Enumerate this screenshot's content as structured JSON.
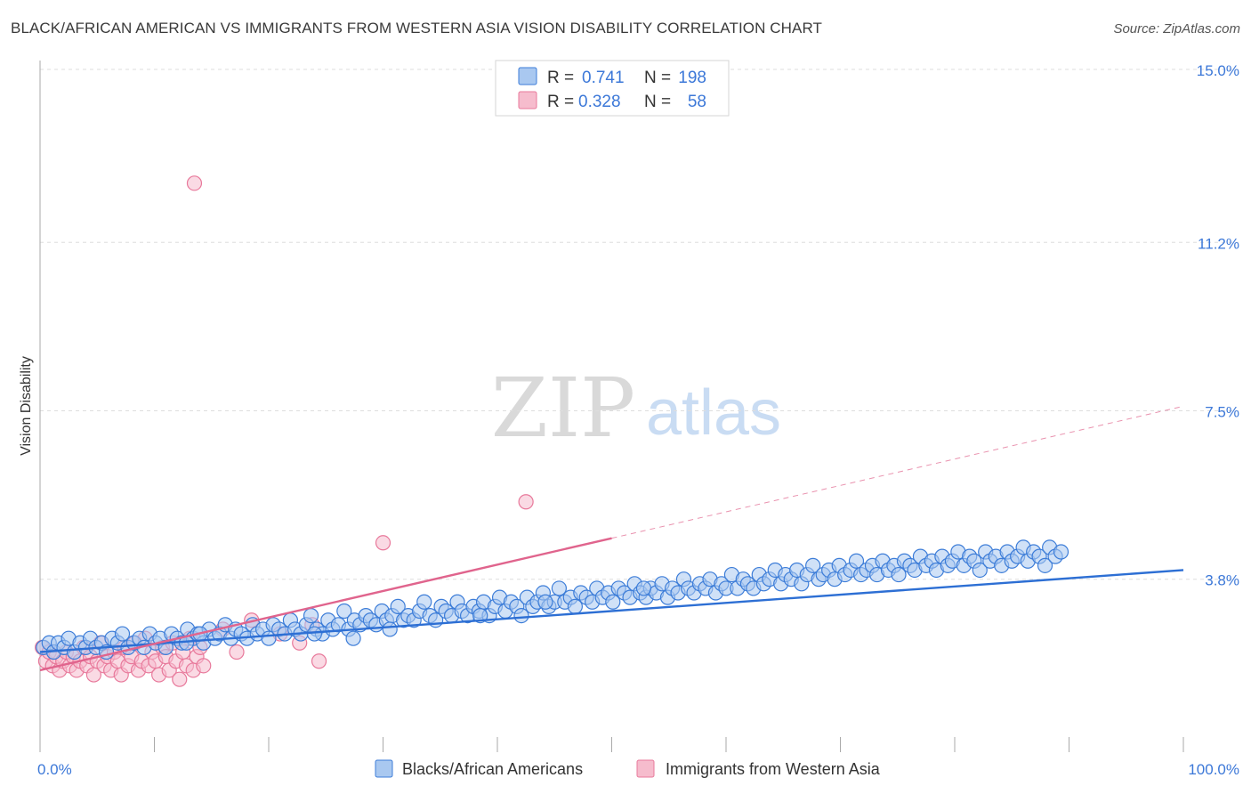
{
  "title": "BLACK/AFRICAN AMERICAN VS IMMIGRANTS FROM WESTERN ASIA VISION DISABILITY CORRELATION CHART",
  "source": "Source: ZipAtlas.com",
  "watermark": {
    "zip": "ZIP",
    "atlas": "atlas"
  },
  "colors": {
    "blue_fill": "#a9c8f0",
    "blue_stroke": "#3d7dd8",
    "blue_line": "#2d6fd4",
    "pink_fill": "#f6bccd",
    "pink_stroke": "#e8799b",
    "pink_line": "#e0648d",
    "tick_label": "#3c78d8",
    "grid": "#dddddd"
  },
  "legend_top": {
    "rows": [
      {
        "r_label": "R =",
        "r_value": "0.741",
        "n_label": "N =",
        "n_value": "198",
        "color": "blue"
      },
      {
        "r_label": "R =",
        "r_value": "0.328",
        "n_label": "N =",
        "n_value": "58",
        "color": "pink"
      }
    ]
  },
  "legend_bottom": [
    {
      "label": "Blacks/African Americans",
      "color": "blue"
    },
    {
      "label": "Immigrants from Western Asia",
      "color": "pink"
    }
  ],
  "chart_data": {
    "type": "scatter",
    "xlabel": "",
    "ylabel": "Vision Disability",
    "xlim": [
      0,
      100
    ],
    "ylim": [
      0,
      15.0
    ],
    "x_tick_labels": [
      {
        "value": 0,
        "label": "0.0%"
      },
      {
        "value": 100,
        "label": "100.0%"
      }
    ],
    "y_tick_labels": [
      {
        "value": 3.8,
        "label": "3.8%"
      },
      {
        "value": 7.5,
        "label": "7.5%"
      },
      {
        "value": 11.2,
        "label": "11.2%"
      },
      {
        "value": 15.0,
        "label": "15.0%"
      }
    ],
    "grid": true,
    "legend_position": "bottom",
    "series": [
      {
        "name": "Blacks/African Americans",
        "color": "blue",
        "trendline": {
          "x": [
            0,
            100
          ],
          "y": [
            2.2,
            4.0
          ]
        },
        "points": [
          [
            0.3,
            2.3
          ],
          [
            0.8,
            2.4
          ],
          [
            1.2,
            2.2
          ],
          [
            1.6,
            2.4
          ],
          [
            2.1,
            2.3
          ],
          [
            2.5,
            2.5
          ],
          [
            3.0,
            2.2
          ],
          [
            3.5,
            2.4
          ],
          [
            4.0,
            2.3
          ],
          [
            4.4,
            2.5
          ],
          [
            4.9,
            2.3
          ],
          [
            5.4,
            2.4
          ],
          [
            5.8,
            2.2
          ],
          [
            6.3,
            2.5
          ],
          [
            6.8,
            2.4
          ],
          [
            7.2,
            2.6
          ],
          [
            7.7,
            2.3
          ],
          [
            8.2,
            2.4
          ],
          [
            8.7,
            2.5
          ],
          [
            9.1,
            2.3
          ],
          [
            9.6,
            2.6
          ],
          [
            10.1,
            2.4
          ],
          [
            10.5,
            2.5
          ],
          [
            11.0,
            2.3
          ],
          [
            11.5,
            2.6
          ],
          [
            12.0,
            2.5
          ],
          [
            12.4,
            2.4
          ],
          [
            12.9,
            2.7
          ],
          [
            13.4,
            2.5
          ],
          [
            13.8,
            2.6
          ],
          [
            14.3,
            2.4
          ],
          [
            14.8,
            2.7
          ],
          [
            15.3,
            2.5
          ],
          [
            15.7,
            2.6
          ],
          [
            16.2,
            2.8
          ],
          [
            16.7,
            2.5
          ],
          [
            17.1,
            2.7
          ],
          [
            17.6,
            2.6
          ],
          [
            18.1,
            2.5
          ],
          [
            18.6,
            2.8
          ],
          [
            19.0,
            2.6
          ],
          [
            19.5,
            2.7
          ],
          [
            20.0,
            2.5
          ],
          [
            20.4,
            2.8
          ],
          [
            20.9,
            2.7
          ],
          [
            21.4,
            2.6
          ],
          [
            21.9,
            2.9
          ],
          [
            22.3,
            2.7
          ],
          [
            22.8,
            2.6
          ],
          [
            23.3,
            2.8
          ],
          [
            23.7,
            3.0
          ],
          [
            24.2,
            2.7
          ],
          [
            24.7,
            2.6
          ],
          [
            25.2,
            2.9
          ],
          [
            25.6,
            2.7
          ],
          [
            26.1,
            2.8
          ],
          [
            26.6,
            3.1
          ],
          [
            27.0,
            2.7
          ],
          [
            27.5,
            2.9
          ],
          [
            28.0,
            2.8
          ],
          [
            28.5,
            3.0
          ],
          [
            28.9,
            2.9
          ],
          [
            29.4,
            2.8
          ],
          [
            29.9,
            3.1
          ],
          [
            30.3,
            2.9
          ],
          [
            30.8,
            3.0
          ],
          [
            31.3,
            3.2
          ],
          [
            31.8,
            2.9
          ],
          [
            32.2,
            3.0
          ],
          [
            32.7,
            2.9
          ],
          [
            33.2,
            3.1
          ],
          [
            33.6,
            3.3
          ],
          [
            34.1,
            3.0
          ],
          [
            34.6,
            2.9
          ],
          [
            35.1,
            3.2
          ],
          [
            35.5,
            3.1
          ],
          [
            36.0,
            3.0
          ],
          [
            36.5,
            3.3
          ],
          [
            36.9,
            3.1
          ],
          [
            37.4,
            3.0
          ],
          [
            37.9,
            3.2
          ],
          [
            38.4,
            3.1
          ],
          [
            38.8,
            3.3
          ],
          [
            39.3,
            3.0
          ],
          [
            39.8,
            3.2
          ],
          [
            40.2,
            3.4
          ],
          [
            40.7,
            3.1
          ],
          [
            41.2,
            3.3
          ],
          [
            41.7,
            3.2
          ],
          [
            42.1,
            3.0
          ],
          [
            42.6,
            3.4
          ],
          [
            43.1,
            3.2
          ],
          [
            43.5,
            3.3
          ],
          [
            44.0,
            3.5
          ],
          [
            44.5,
            3.2
          ],
          [
            45.0,
            3.3
          ],
          [
            45.4,
            3.6
          ],
          [
            45.9,
            3.3
          ],
          [
            46.4,
            3.4
          ],
          [
            46.8,
            3.2
          ],
          [
            47.3,
            3.5
          ],
          [
            47.8,
            3.4
          ],
          [
            48.3,
            3.3
          ],
          [
            48.7,
            3.6
          ],
          [
            49.2,
            3.4
          ],
          [
            49.7,
            3.5
          ],
          [
            50.1,
            3.3
          ],
          [
            50.6,
            3.6
          ],
          [
            51.1,
            3.5
          ],
          [
            51.6,
            3.4
          ],
          [
            52.0,
            3.7
          ],
          [
            52.5,
            3.5
          ],
          [
            53.0,
            3.4
          ],
          [
            53.4,
            3.6
          ],
          [
            53.9,
            3.5
          ],
          [
            54.4,
            3.7
          ],
          [
            54.9,
            3.4
          ],
          [
            55.3,
            3.6
          ],
          [
            55.8,
            3.5
          ],
          [
            56.3,
            3.8
          ],
          [
            56.7,
            3.6
          ],
          [
            57.2,
            3.5
          ],
          [
            57.7,
            3.7
          ],
          [
            58.2,
            3.6
          ],
          [
            58.6,
            3.8
          ],
          [
            59.1,
            3.5
          ],
          [
            59.6,
            3.7
          ],
          [
            60.0,
            3.6
          ],
          [
            60.5,
            3.9
          ],
          [
            61.0,
            3.6
          ],
          [
            61.5,
            3.8
          ],
          [
            61.9,
            3.7
          ],
          [
            62.4,
            3.6
          ],
          [
            62.9,
            3.9
          ],
          [
            63.3,
            3.7
          ],
          [
            63.8,
            3.8
          ],
          [
            64.3,
            4.0
          ],
          [
            64.8,
            3.7
          ],
          [
            65.2,
            3.9
          ],
          [
            65.7,
            3.8
          ],
          [
            66.2,
            4.0
          ],
          [
            66.6,
            3.7
          ],
          [
            67.1,
            3.9
          ],
          [
            67.6,
            4.1
          ],
          [
            68.1,
            3.8
          ],
          [
            68.5,
            3.9
          ],
          [
            69.0,
            4.0
          ],
          [
            69.5,
            3.8
          ],
          [
            69.9,
            4.1
          ],
          [
            70.4,
            3.9
          ],
          [
            70.9,
            4.0
          ],
          [
            71.4,
            4.2
          ],
          [
            71.8,
            3.9
          ],
          [
            72.3,
            4.0
          ],
          [
            72.8,
            4.1
          ],
          [
            73.2,
            3.9
          ],
          [
            73.7,
            4.2
          ],
          [
            74.2,
            4.0
          ],
          [
            74.7,
            4.1
          ],
          [
            75.1,
            3.9
          ],
          [
            75.6,
            4.2
          ],
          [
            76.1,
            4.1
          ],
          [
            76.5,
            4.0
          ],
          [
            77.0,
            4.3
          ],
          [
            77.5,
            4.1
          ],
          [
            78.0,
            4.2
          ],
          [
            78.4,
            4.0
          ],
          [
            78.9,
            4.3
          ],
          [
            79.4,
            4.1
          ],
          [
            79.8,
            4.2
          ],
          [
            80.3,
            4.4
          ],
          [
            80.8,
            4.1
          ],
          [
            81.3,
            4.3
          ],
          [
            81.7,
            4.2
          ],
          [
            82.2,
            4.0
          ],
          [
            82.7,
            4.4
          ],
          [
            83.1,
            4.2
          ],
          [
            83.6,
            4.3
          ],
          [
            84.1,
            4.1
          ],
          [
            84.6,
            4.4
          ],
          [
            85.0,
            4.2
          ],
          [
            85.5,
            4.3
          ],
          [
            86.0,
            4.5
          ],
          [
            86.4,
            4.2
          ],
          [
            86.9,
            4.4
          ],
          [
            87.4,
            4.3
          ],
          [
            87.9,
            4.1
          ],
          [
            88.3,
            4.5
          ],
          [
            88.8,
            4.3
          ],
          [
            89.3,
            4.4
          ],
          [
            12.8,
            2.4
          ],
          [
            14.0,
            2.6
          ],
          [
            24.0,
            2.6
          ],
          [
            27.4,
            2.5
          ],
          [
            30.6,
            2.7
          ],
          [
            38.5,
            3.0
          ],
          [
            44.2,
            3.3
          ],
          [
            52.8,
            3.6
          ]
        ]
      },
      {
        "name": "Immigrants from Western Asia",
        "color": "pink",
        "trendline": {
          "x": [
            0,
            50
          ],
          "y": [
            1.8,
            4.7
          ]
        },
        "trendline_dashed_extension": {
          "x": [
            50,
            100
          ],
          "y": [
            4.7,
            7.6
          ]
        },
        "points": [
          [
            0.2,
            2.3
          ],
          [
            0.5,
            2.0
          ],
          [
            0.8,
            2.2
          ],
          [
            1.1,
            1.9
          ],
          [
            1.4,
            2.1
          ],
          [
            1.7,
            1.8
          ],
          [
            2.0,
            2.0
          ],
          [
            2.3,
            2.2
          ],
          [
            2.6,
            1.9
          ],
          [
            2.9,
            2.1
          ],
          [
            3.2,
            1.8
          ],
          [
            3.5,
            2.0
          ],
          [
            3.8,
            2.3
          ],
          [
            4.1,
            1.9
          ],
          [
            4.4,
            2.1
          ],
          [
            4.7,
            1.7
          ],
          [
            5.0,
            2.0
          ],
          [
            5.3,
            2.4
          ],
          [
            5.6,
            1.9
          ],
          [
            5.9,
            2.1
          ],
          [
            6.2,
            1.8
          ],
          [
            6.5,
            2.2
          ],
          [
            6.8,
            2.0
          ],
          [
            7.1,
            1.7
          ],
          [
            7.4,
            2.3
          ],
          [
            7.7,
            1.9
          ],
          [
            8.0,
            2.1
          ],
          [
            8.3,
            2.4
          ],
          [
            8.6,
            1.8
          ],
          [
            8.9,
            2.0
          ],
          [
            9.2,
            2.5
          ],
          [
            9.5,
            1.9
          ],
          [
            9.8,
            2.2
          ],
          [
            10.1,
            2.0
          ],
          [
            10.4,
            1.7
          ],
          [
            10.7,
            2.3
          ],
          [
            11.0,
            2.1
          ],
          [
            11.3,
            1.8
          ],
          [
            11.6,
            2.4
          ],
          [
            11.9,
            2.0
          ],
          [
            12.2,
            1.6
          ],
          [
            12.5,
            2.2
          ],
          [
            12.8,
            1.9
          ],
          [
            13.1,
            2.5
          ],
          [
            13.4,
            1.8
          ],
          [
            13.7,
            2.1
          ],
          [
            14.0,
            2.3
          ],
          [
            14.3,
            1.9
          ],
          [
            16.0,
            2.7
          ],
          [
            17.2,
            2.2
          ],
          [
            18.5,
            2.9
          ],
          [
            21.0,
            2.6
          ],
          [
            22.7,
            2.4
          ],
          [
            24.4,
            2.0
          ],
          [
            23.8,
            2.8
          ],
          [
            13.5,
            12.5
          ],
          [
            30.0,
            4.6
          ],
          [
            42.5,
            5.5
          ]
        ]
      }
    ]
  }
}
